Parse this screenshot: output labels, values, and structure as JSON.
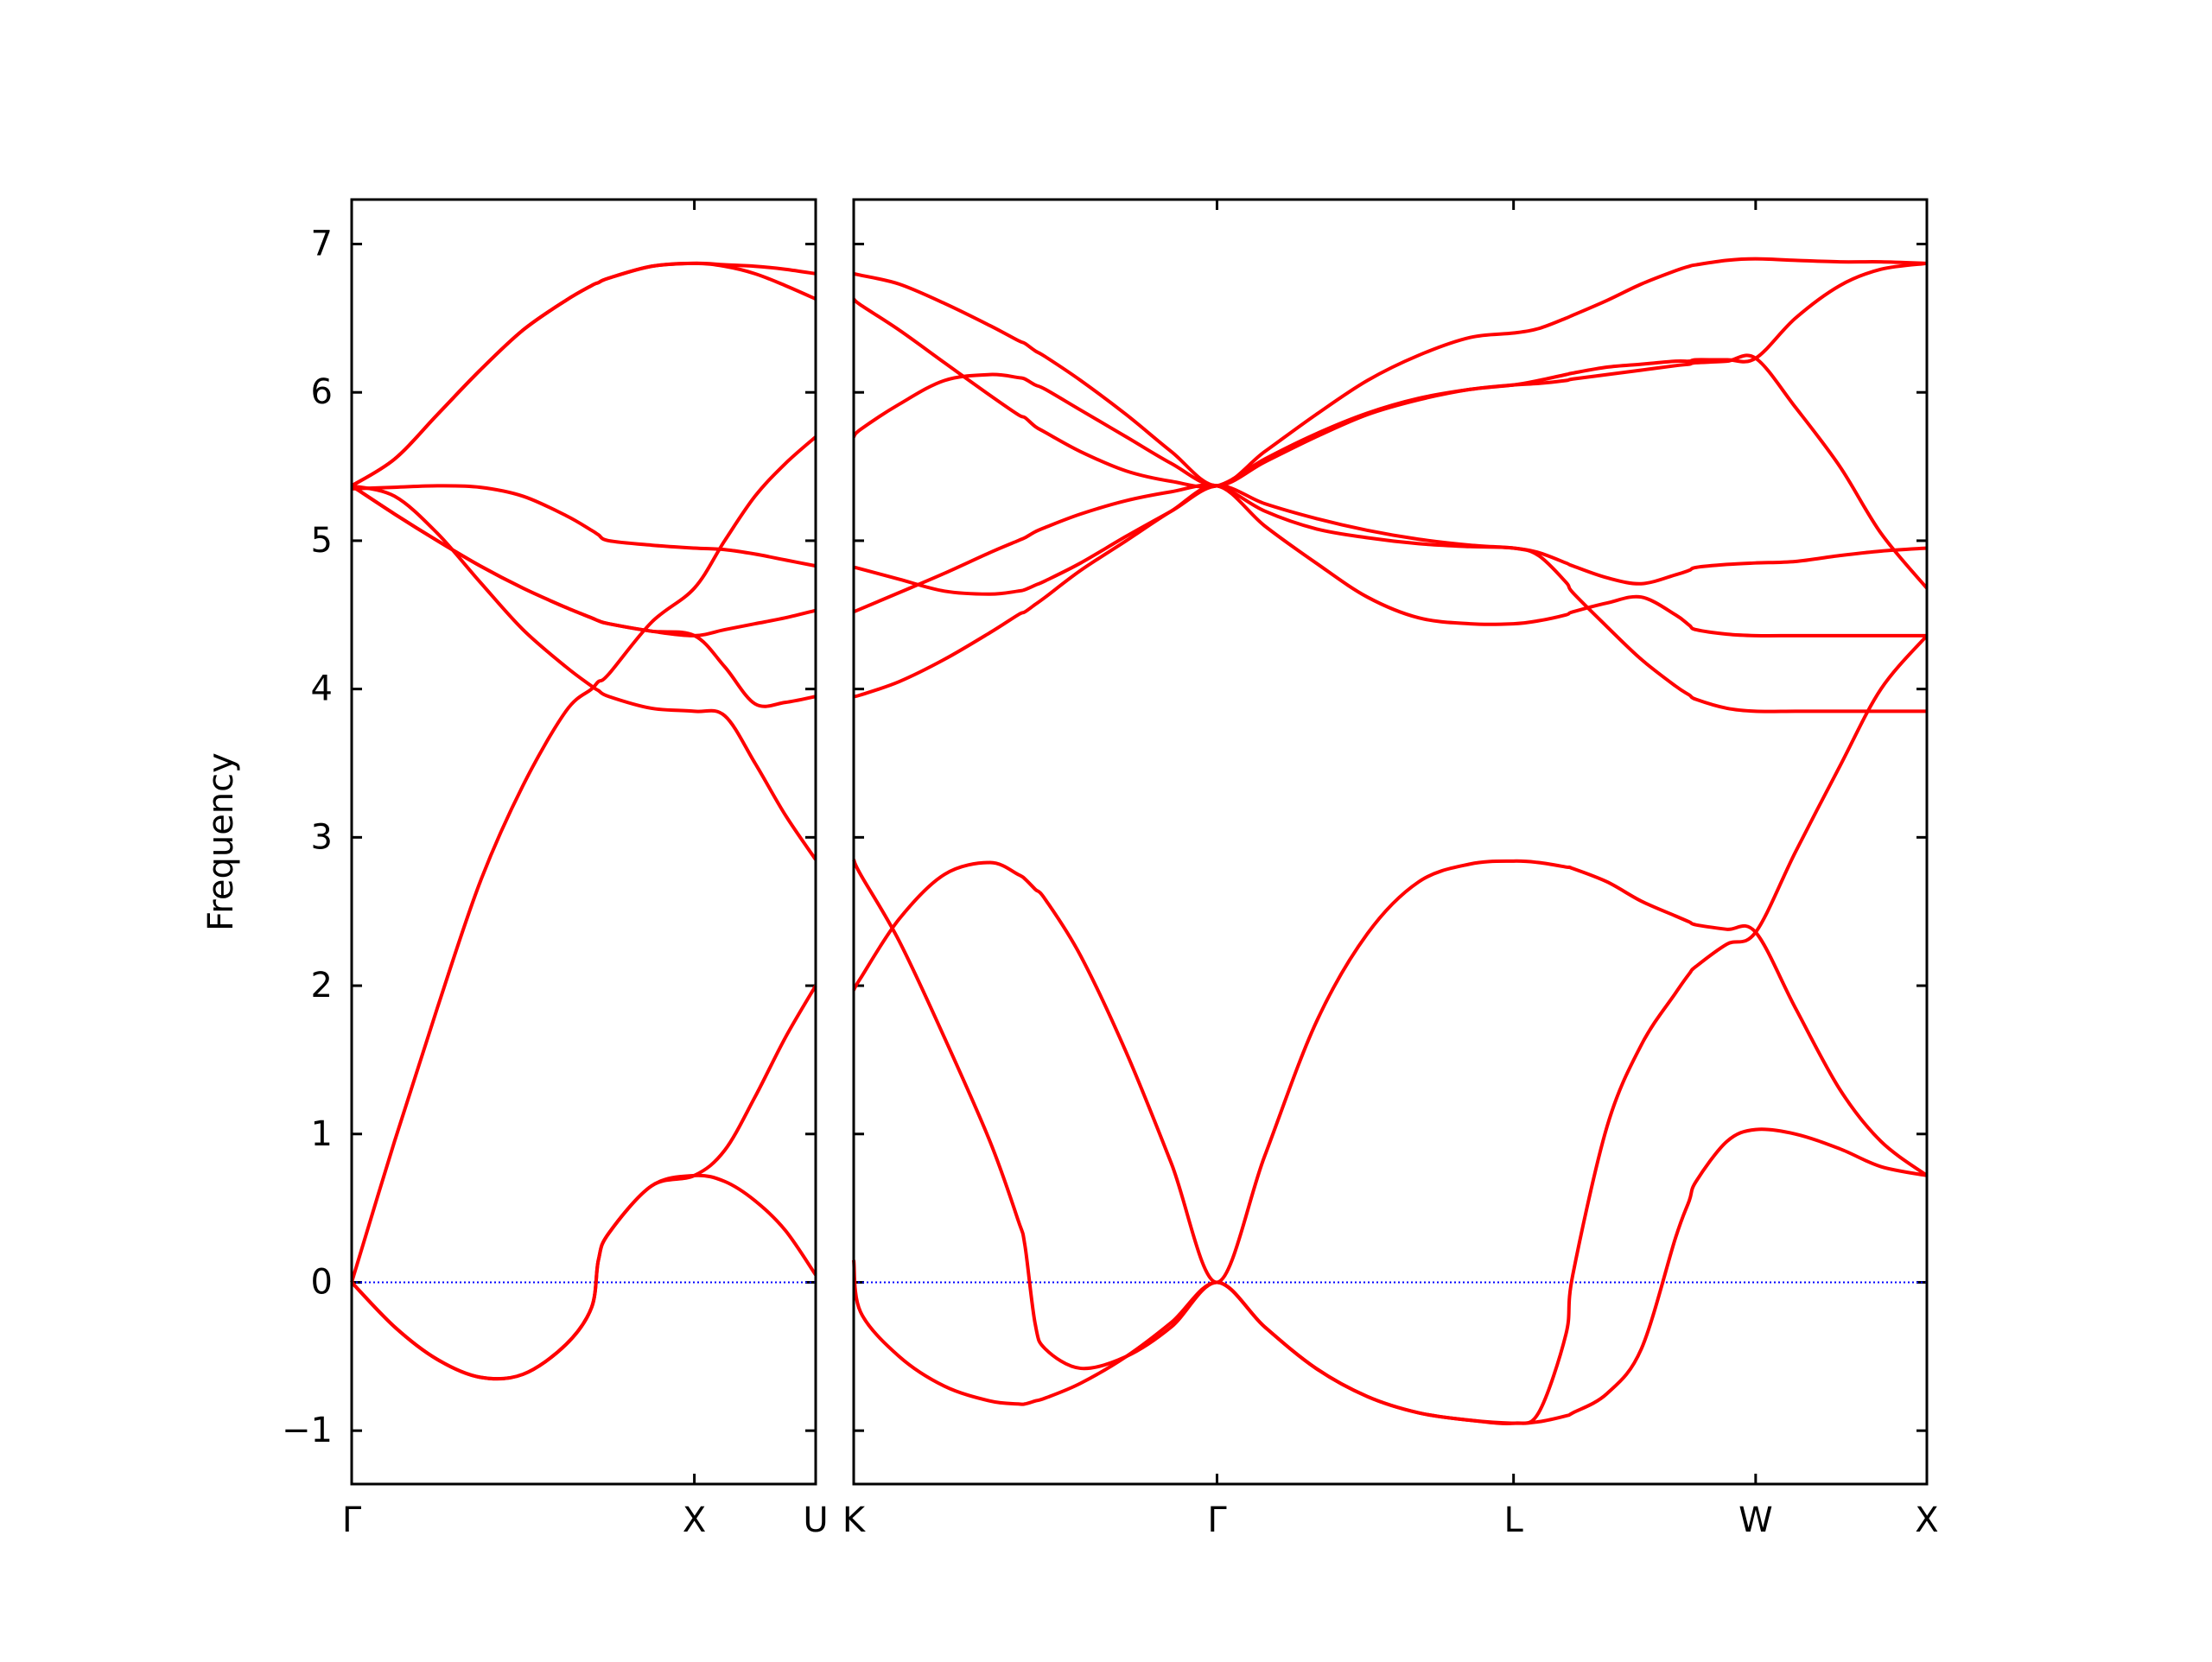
{
  "chart_data": [
    {
      "type": "line",
      "ylabel": "Frequency",
      "x": [
        0,
        0.125,
        0.25,
        0.375,
        0.5,
        0.625,
        0.7,
        0.72,
        0.75,
        0.875,
        1,
        1.0885,
        1.177,
        1.2655,
        1.354
      ],
      "xlim": [
        0,
        1.354
      ],
      "xticks": [
        {
          "value": 0,
          "label": "Γ"
        },
        {
          "value": 1,
          "label": "X"
        },
        {
          "value": 1.354,
          "label": "U"
        }
      ],
      "ylim": [
        -1.36,
        7.3
      ],
      "yticks": [
        {
          "value": -1,
          "label": "−1"
        },
        0,
        1,
        2,
        3,
        4,
        5,
        6,
        7
      ],
      "hline": 0,
      "hline_color": "#0000ff",
      "series": [
        {
          "color": "#ff0000",
          "values": [
            0,
            -0.3,
            -0.52,
            -0.64,
            -0.62,
            -0.42,
            -0.17,
            0.15,
            0.33,
            0.65,
            0.72,
            0.68,
            0.55,
            0.35,
            0.05
          ]
        },
        {
          "color": "#ff0000",
          "values": [
            0,
            -0.3,
            -0.52,
            -0.64,
            -0.62,
            -0.42,
            -0.17,
            0.15,
            0.33,
            0.65,
            0.72,
            0.89,
            1.25,
            1.65,
            2.0
          ]
        },
        {
          "color": "#ff0000",
          "values": [
            0,
            0.95,
            1.85,
            2.7,
            3.35,
            3.85,
            4.0,
            4.05,
            4.1,
            4.45,
            4.68,
            5.0,
            5.3,
            5.52,
            5.7
          ]
        },
        {
          "color": "#ff0000",
          "values": [
            5.37,
            5.3,
            5.05,
            4.72,
            4.4,
            4.15,
            4.02,
            3.99,
            3.95,
            3.87,
            3.85,
            3.82,
            3.5,
            3.15,
            2.85
          ]
        },
        {
          "color": "#ff0000",
          "values": [
            5.37,
            5.18,
            5.0,
            4.83,
            4.68,
            4.55,
            4.48,
            4.46,
            4.44,
            4.39,
            4.36,
            4.15,
            3.9,
            3.91,
            3.95
          ]
        },
        {
          "color": "#ff0000",
          "values": [
            5.37,
            5.18,
            5.0,
            4.83,
            4.68,
            4.55,
            4.48,
            4.46,
            4.44,
            4.39,
            4.36,
            4.4,
            4.44,
            4.48,
            4.53
          ]
        },
        {
          "color": "#ff0000",
          "values": [
            5.35,
            5.36,
            5.37,
            5.36,
            5.3,
            5.17,
            5.07,
            5.04,
            5.0,
            4.97,
            4.95,
            4.94,
            4.91,
            4.87,
            4.83
          ]
        },
        {
          "color": "#ff0000",
          "values": [
            5.37,
            5.55,
            5.85,
            6.15,
            6.42,
            6.62,
            6.72,
            6.74,
            6.77,
            6.85,
            6.87,
            6.86,
            6.85,
            6.83,
            6.8
          ]
        },
        {
          "color": "#ff0000",
          "values": [
            5.37,
            5.55,
            5.85,
            6.15,
            6.42,
            6.62,
            6.72,
            6.74,
            6.77,
            6.85,
            6.87,
            6.85,
            6.8,
            6.72,
            6.63
          ]
        }
      ]
    },
    {
      "type": "line",
      "sharey": true,
      "x": [
        0,
        0.02,
        0.133,
        0.265,
        0.398,
        0.48,
        0.5,
        0.53,
        0.56,
        0.663,
        0.796,
        0.928,
        1.061,
        1.2,
        1.35,
        1.5,
        1.65,
        1.8,
        1.927,
        2.0,
        2.08,
        2.1,
        2.2,
        2.3,
        2.4,
        2.44,
        2.46,
        2.55,
        2.634,
        2.75,
        2.88,
        3.0,
        3.134
      ],
      "xlim": [
        0,
        3.134
      ],
      "xticks": [
        {
          "value": 0,
          "label": "K"
        },
        {
          "value": 1.061,
          "label": "Γ"
        },
        {
          "value": 1.927,
          "label": "L"
        },
        {
          "value": 2.634,
          "label": "W"
        },
        {
          "value": 3.134,
          "label": "X"
        }
      ],
      "hline": 0,
      "hline_color": "#0000ff",
      "series": [
        {
          "color": "#ff0000",
          "values": [
            6.8,
            6.79,
            6.73,
            6.6,
            6.45,
            6.35,
            6.33,
            6.28,
            6.24,
            6.08,
            5.85,
            5.6,
            5.37,
            5.6,
            5.85,
            6.08,
            6.25,
            6.37,
            6.4,
            6.43,
            6.5,
            6.52,
            6.62,
            6.73,
            6.82,
            6.85,
            6.86,
            6.89,
            6.9,
            6.89,
            6.88,
            6.88,
            6.87
          ]
        },
        {
          "color": "#ff0000",
          "values": [
            6.63,
            6.59,
            6.42,
            6.2,
            5.98,
            5.85,
            5.83,
            5.77,
            5.73,
            5.6,
            5.47,
            5.4,
            5.37,
            5.55,
            5.72,
            5.86,
            5.96,
            6.02,
            6.05,
            6.08,
            6.12,
            6.13,
            6.17,
            6.19,
            6.21,
            6.21,
            6.22,
            6.22,
            6.23,
            6.5,
            6.72,
            6.83,
            6.87
          ]
        },
        {
          "color": "#ff0000",
          "values": [
            5.7,
            5.75,
            5.92,
            6.08,
            6.12,
            6.1,
            6.09,
            6.05,
            6.02,
            5.88,
            5.7,
            5.52,
            5.37,
            5.53,
            5.7,
            5.85,
            5.95,
            6.02,
            6.05,
            6.06,
            6.08,
            6.09,
            6.12,
            6.15,
            6.18,
            6.19,
            6.2,
            6.21,
            6.23,
            5.9,
            5.5,
            5.05,
            4.68
          ]
        },
        {
          "color": "#ff0000",
          "values": [
            4.82,
            4.81,
            4.74,
            4.66,
            4.64,
            4.66,
            4.67,
            4.7,
            4.73,
            4.85,
            5.03,
            5.2,
            5.37,
            5.25,
            5.15,
            5.07,
            5.01,
            4.97,
            4.95,
            4.92,
            4.85,
            4.83,
            4.75,
            4.71,
            4.77,
            4.8,
            4.82,
            4.84,
            4.85,
            4.86,
            4.9,
            4.93,
            4.95
          ]
        },
        {
          "color": "#ff0000",
          "values": [
            4.52,
            4.54,
            4.65,
            4.78,
            4.92,
            5.0,
            5.02,
            5.06,
            5.09,
            5.18,
            5.27,
            5.33,
            5.37,
            5.2,
            5.08,
            5.02,
            4.98,
            4.96,
            4.95,
            4.9,
            4.72,
            4.65,
            4.42,
            4.2,
            4.02,
            3.96,
            3.93,
            3.87,
            3.85,
            3.85,
            3.85,
            3.85,
            3.85
          ]
        },
        {
          "color": "#ff0000",
          "values": [
            3.95,
            3.96,
            4.05,
            4.2,
            4.38,
            4.5,
            4.52,
            4.57,
            4.62,
            4.8,
            5.0,
            5.2,
            5.37,
            5.1,
            4.85,
            4.62,
            4.48,
            4.44,
            4.44,
            4.46,
            4.5,
            4.52,
            4.58,
            4.62,
            4.5,
            4.43,
            4.4,
            4.37,
            4.36,
            4.36,
            4.36,
            4.36,
            4.36
          ]
        },
        {
          "color": "#ff0000",
          "values": [
            2.85,
            2.75,
            2.3,
            1.65,
            0.95,
            0.42,
            0.25,
            -0.28,
            -0.45,
            -0.58,
            -0.5,
            -0.3,
            0,
            -0.3,
            -0.58,
            -0.77,
            -0.88,
            -0.93,
            -0.95,
            -0.88,
            -0.35,
            0.05,
            1.05,
            1.6,
            1.95,
            2.08,
            2.13,
            2.28,
            2.36,
            2.9,
            3.48,
            4.0,
            4.36
          ]
        },
        {
          "color": "#ff0000",
          "values": [
            1.97,
            2.05,
            2.45,
            2.75,
            2.83,
            2.75,
            2.72,
            2.65,
            2.58,
            2.2,
            1.55,
            0.8,
            0,
            0.85,
            1.75,
            2.35,
            2.7,
            2.82,
            2.84,
            2.83,
            2.8,
            2.79,
            2.7,
            2.57,
            2.47,
            2.43,
            2.41,
            2.38,
            2.36,
            1.85,
            1.3,
            0.95,
            0.72
          ]
        },
        {
          "color": "#ff0000",
          "values": [
            0.15,
            -0.2,
            -0.5,
            -0.7,
            -0.8,
            -0.82,
            -0.82,
            -0.8,
            -0.78,
            -0.68,
            -0.5,
            -0.27,
            0,
            -0.3,
            -0.58,
            -0.77,
            -0.88,
            -0.93,
            -0.95,
            -0.94,
            -0.9,
            -0.88,
            -0.75,
            -0.45,
            0.3,
            0.55,
            0.68,
            0.95,
            1.03,
            1.0,
            0.9,
            0.78,
            0.72
          ]
        }
      ]
    }
  ]
}
